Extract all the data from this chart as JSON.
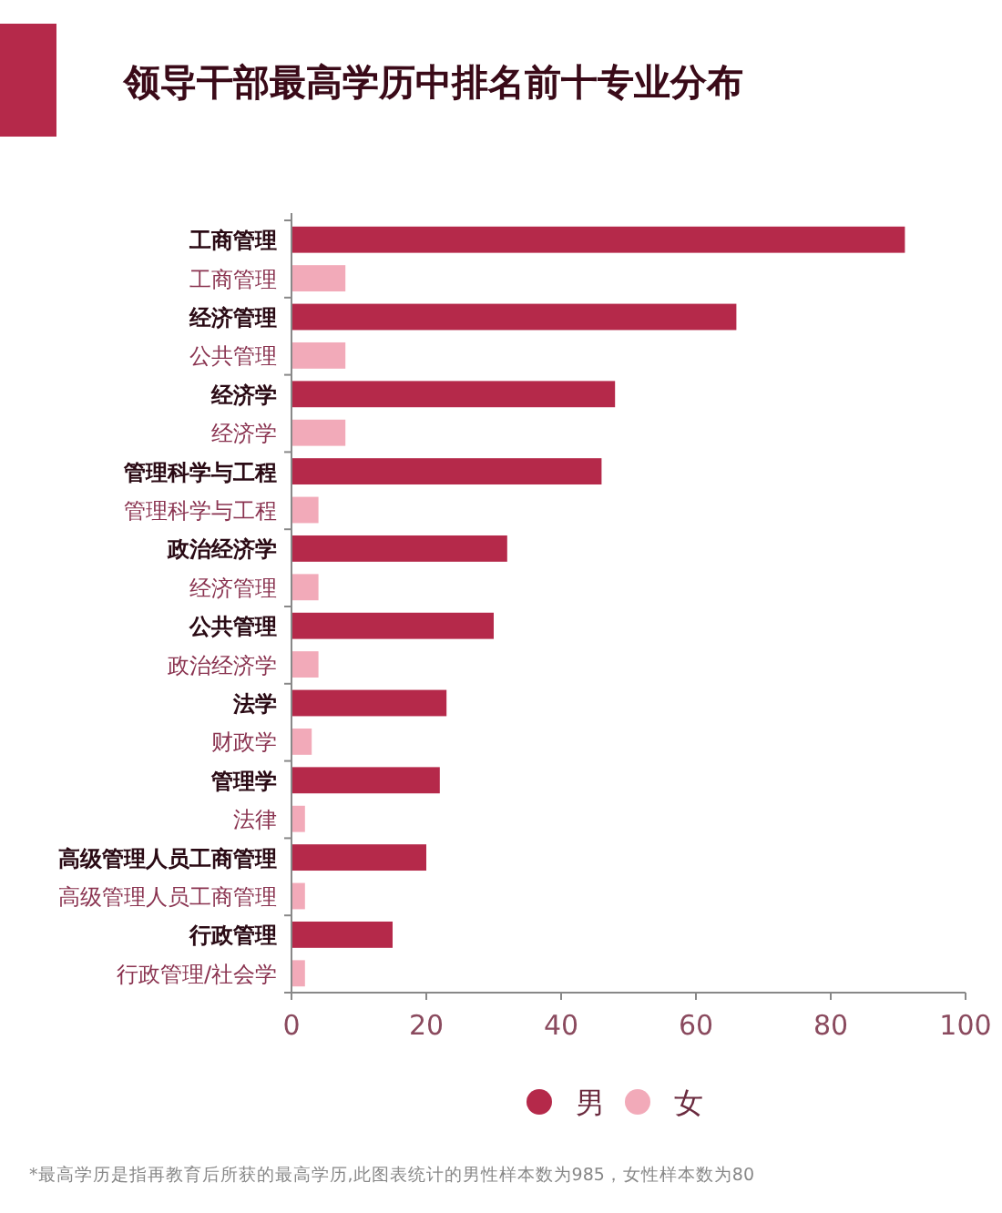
{
  "chart_data": {
    "type": "bar",
    "orientation": "horizontal",
    "title": "领导干部最高学历中排名前十专业分布",
    "categories": [
      "工商管理",
      "工商管理",
      "经济管理",
      "公共管理",
      "经济学",
      "经济学",
      "管理科学与工程",
      "管理科学与工程",
      "政治经济学",
      "经济管理",
      "公共管理",
      "政治经济学",
      "法学",
      "财政学",
      "管理学",
      "法律",
      "高级管理人员工商管理",
      "高级管理人员工商管理",
      "行政管理",
      "行政管理/社会学"
    ],
    "series": [
      {
        "name": "男",
        "color": "#b5294a",
        "values": [
          91,
          null,
          66,
          null,
          48,
          null,
          46,
          null,
          32,
          null,
          30,
          null,
          23,
          null,
          22,
          null,
          20,
          null,
          15,
          null
        ]
      },
      {
        "name": "女",
        "color": "#f2aab9",
        "values": [
          null,
          8,
          null,
          8,
          null,
          8,
          null,
          4,
          null,
          4,
          null,
          4,
          null,
          3,
          null,
          2,
          null,
          2,
          null,
          2
        ]
      }
    ],
    "xlim": [
      0,
      100
    ],
    "xticks": [
      0,
      20,
      40,
      60,
      80,
      100
    ],
    "grid": false,
    "legend": "bottom",
    "annotations": [
      "*最高学历是指再教育后所获的最高学历,此图表统计的男性样本数为985，女性样本数为80"
    ]
  }
}
